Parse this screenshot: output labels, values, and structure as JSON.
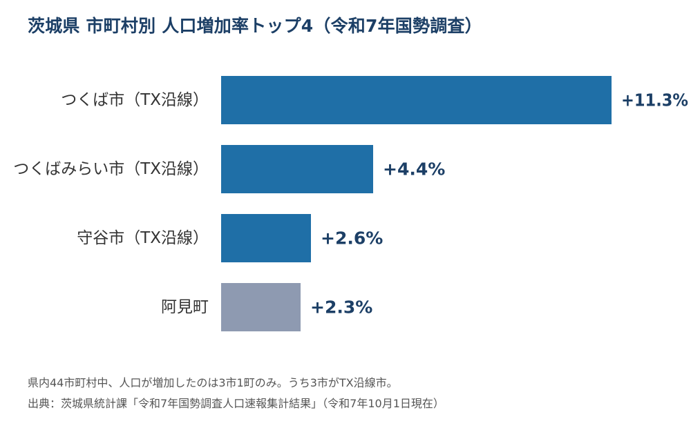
{
  "chart_data": {
    "type": "bar",
    "orientation": "horizontal",
    "title": "茨城県 市町村別 人口増加率トップ4（令和7年国勢調査）",
    "categories": [
      "つくば市（TX沿線）",
      "つくばみらい市（TX沿線）",
      "守谷市（TX沿線）",
      "阿見町"
    ],
    "values": [
      11.3,
      4.4,
      2.6,
      2.3
    ],
    "value_labels": [
      "+11.3%",
      "+4.4%",
      "+2.6%",
      "+2.3%"
    ],
    "xlabel": "",
    "ylabel": "",
    "xlim": [
      0,
      11.3
    ],
    "grid": false,
    "legend": "none",
    "colors": {
      "tx_line": "#1f6fa7",
      "other": "#8e9ab1",
      "value_text": "#1c3f66"
    },
    "bar_color_keys": [
      "tx_line",
      "tx_line",
      "tx_line",
      "other"
    ]
  },
  "footnotes": {
    "note": "県内44市町村中、人口が増加したのは3市1町のみ。うち3市がTX沿線市。",
    "source": "出典：茨城県統計課「令和7年国勢調査人口速報集計結果」（令和7年10月1日現在）"
  }
}
